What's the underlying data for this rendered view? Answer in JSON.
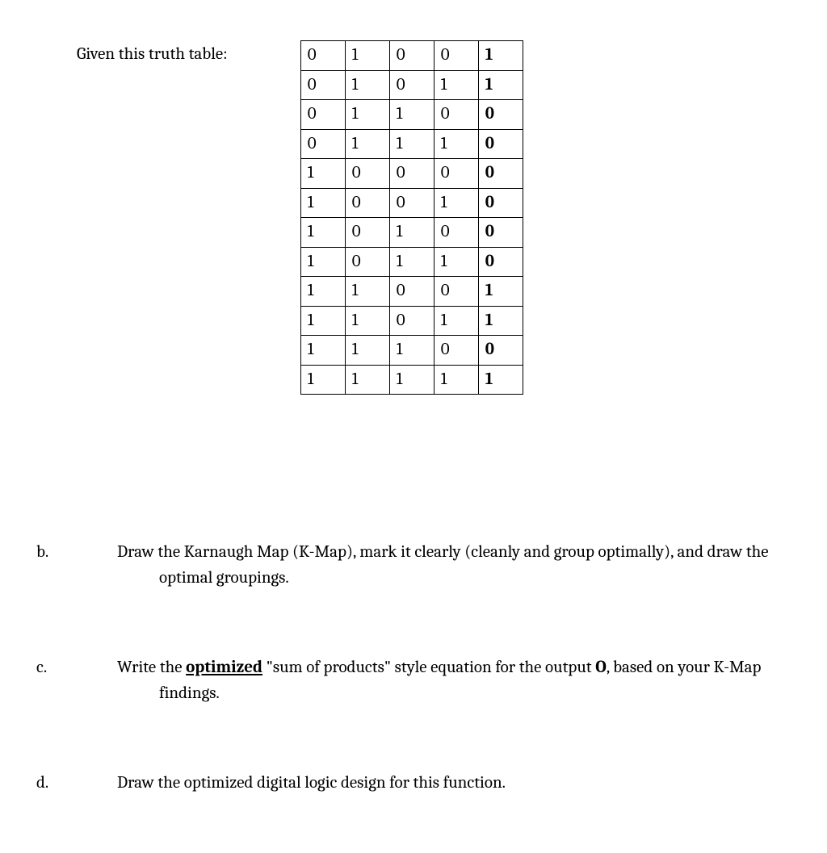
{
  "promptLabel": "Given this truth table:",
  "truthTable": {
    "rows": [
      [
        "0",
        "1",
        "0",
        "0",
        "1"
      ],
      [
        "0",
        "1",
        "0",
        "1",
        "1"
      ],
      [
        "0",
        "1",
        "1",
        "0",
        "0"
      ],
      [
        "0",
        "1",
        "1",
        "1",
        "0"
      ],
      [
        "1",
        "0",
        "0",
        "0",
        "0"
      ],
      [
        "1",
        "0",
        "0",
        "1",
        "0"
      ],
      [
        "1",
        "0",
        "1",
        "0",
        "0"
      ],
      [
        "1",
        "0",
        "1",
        "1",
        "0"
      ],
      [
        "1",
        "1",
        "0",
        "0",
        "1"
      ],
      [
        "1",
        "1",
        "0",
        "1",
        "1"
      ],
      [
        "1",
        "1",
        "1",
        "0",
        "0"
      ],
      [
        "1",
        "1",
        "1",
        "1",
        "1"
      ]
    ],
    "cellBorderColor": "#000000",
    "cellWidthPx": 55,
    "cellHeightPx": 31,
    "outputColumnIndex": 4,
    "outputBold": true
  },
  "questions": {
    "b": {
      "marker": "b.",
      "text_before": "Draw the Karnaugh Map (K-Map), mark it clearly (cleanly and group optimally), and draw the optimal groupings."
    },
    "c": {
      "marker": "c.",
      "text_leadA": "Write the ",
      "text_emph": "optimized",
      "text_leadB": " \"sum of products\" style equation for the output ",
      "text_boldO": "O",
      "text_trail": ", based on your K-Map findings."
    },
    "d": {
      "marker": "d.",
      "text": "Draw the optimized digital logic design for this function."
    }
  },
  "style": {
    "backgroundColor": "#ffffff",
    "textColor": "#000000",
    "baseFontSizePx": 21,
    "fontFamily": "Cambria, Georgia, Times New Roman, serif"
  }
}
